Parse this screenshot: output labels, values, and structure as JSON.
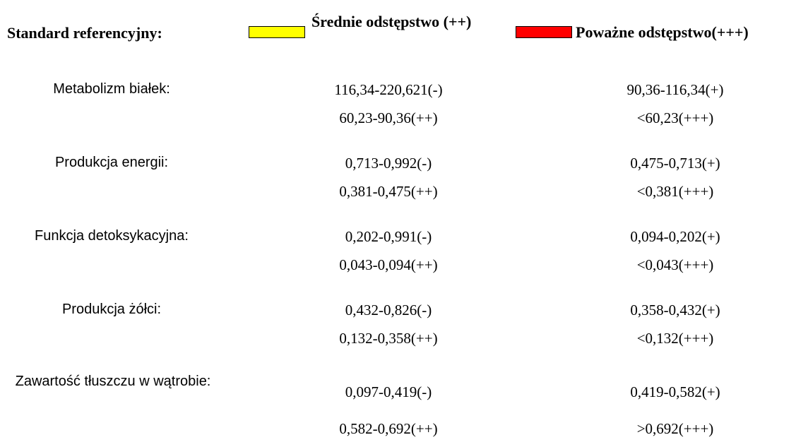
{
  "legend": {
    "title": "Standard referencyjny:",
    "moderate_label": "Średnie odstępstwo (++)",
    "severe_label": "Poważne odstępstwo(+++)",
    "moderate_color": "#ffff00",
    "severe_color": "#ff0000"
  },
  "rows": [
    {
      "name": "Metabolizm białek:",
      "normal": "116,34-220,621(-)",
      "mild": "90,36-116,34(+)",
      "moderate": "60,23-90,36(++)",
      "severe": "<60,23(+++)"
    },
    {
      "name": "Produkcja energii:",
      "normal": "0,713-0,992(-)",
      "mild": "0,475-0,713(+)",
      "moderate": "0,381-0,475(++)",
      "severe": "<0,381(+++)"
    },
    {
      "name": "Funkcja detoksykacyjna:",
      "normal": "0,202-0,991(-)",
      "mild": "0,094-0,202(+)",
      "moderate": "0,043-0,094(++)",
      "severe": "<0,043(+++)"
    },
    {
      "name": "Produkcja żółci:",
      "normal": "0,432-0,826(-)",
      "mild": "0,358-0,432(+)",
      "moderate": "0,132-0,358(++)",
      "severe": "<0,132(+++)"
    },
    {
      "name": "Zawartość tłuszczu w wątrobie:",
      "normal": "0,097-0,419(-)",
      "mild": "0,419-0,582(+)",
      "moderate": "0,582-0,692(++)",
      "severe": ">0,692(+++)"
    }
  ]
}
